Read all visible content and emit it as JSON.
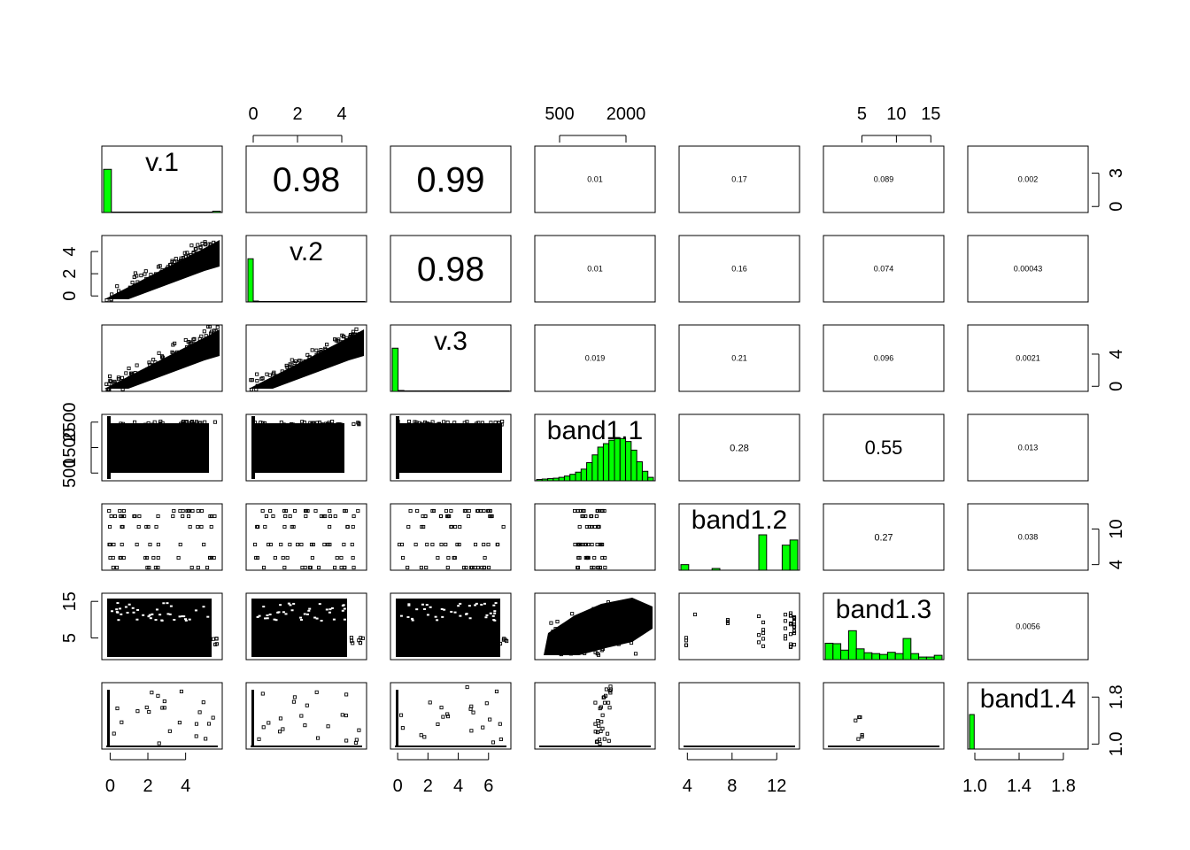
{
  "chart_data": {
    "type": "scatter-matrix",
    "variables": [
      "v.1",
      "v.2",
      "v.3",
      "band1.1",
      "band1.2",
      "band1.3",
      "band1.4"
    ],
    "axes": {
      "top": [
        {
          "col": 1,
          "ticks": [
            "0",
            "2",
            "4"
          ],
          "values": [
            0,
            2,
            4
          ],
          "range": [
            -0.2,
            5
          ]
        },
        {
          "col": 3,
          "ticks": [
            "500",
            "2000"
          ],
          "values": [
            500,
            2000
          ],
          "range": [
            0,
            2600
          ]
        },
        {
          "col": 5,
          "ticks": [
            "5",
            "10",
            "15"
          ],
          "values": [
            5,
            10,
            15
          ],
          "range": [
            -0.2,
            16.5
          ]
        }
      ],
      "bottom": [
        {
          "col": 0,
          "ticks": [
            "0",
            "2",
            "4"
          ],
          "values": [
            0,
            2,
            4
          ],
          "range": [
            -0.3,
            5.8
          ]
        },
        {
          "col": 2,
          "ticks": [
            "0",
            "2",
            "4",
            "6"
          ],
          "values": [
            0,
            2,
            4,
            6
          ],
          "range": [
            -0.3,
            7.3
          ]
        },
        {
          "col": 4,
          "ticks": [
            "4",
            "8",
            "12"
          ],
          "values": [
            4,
            8,
            12
          ],
          "range": [
            3.5,
            13.8
          ]
        },
        {
          "col": 6,
          "ticks": [
            "1.0",
            "1.4",
            "1.8"
          ],
          "values": [
            1.0,
            1.4,
            1.8
          ],
          "range": [
            0.96,
            2.0
          ]
        }
      ],
      "left": [
        {
          "row": 1,
          "ticks": [
            "0",
            "2",
            "4"
          ],
          "values": [
            0,
            2,
            4
          ],
          "range": [
            -0.3,
            5.2
          ]
        },
        {
          "row": 3,
          "ticks": [
            "500",
            "1500",
            "2500"
          ],
          "values": [
            500,
            1500,
            2500
          ],
          "range": [
            300,
            2700
          ]
        },
        {
          "row": 5,
          "ticks": [
            "5",
            "15"
          ],
          "values": [
            5,
            15
          ],
          "range": [
            -0.2,
            16.5
          ]
        }
      ],
      "right": [
        {
          "row": 0,
          "ticks": [
            "0",
            "3"
          ],
          "values": [
            0,
            3
          ],
          "range": [
            -0.3,
            5.2
          ]
        },
        {
          "row": 2,
          "ticks": [
            "0",
            "4"
          ],
          "values": [
            0,
            4
          ],
          "range": [
            -0.3,
            7.3
          ]
        },
        {
          "row": 4,
          "ticks": [
            "4",
            "10"
          ],
          "values": [
            4,
            10
          ],
          "range": [
            3.5,
            13.8
          ]
        },
        {
          "row": 6,
          "ticks": [
            "1.0",
            "1.8"
          ],
          "values": [
            1.0,
            1.8
          ],
          "range": [
            0.96,
            2.0
          ]
        }
      ]
    },
    "correlations": [
      {
        "row": 0,
        "col": 1,
        "value": "0.98"
      },
      {
        "row": 0,
        "col": 2,
        "value": "0.99"
      },
      {
        "row": 0,
        "col": 3,
        "value": "0.01"
      },
      {
        "row": 0,
        "col": 4,
        "value": "0.17"
      },
      {
        "row": 0,
        "col": 5,
        "value": "0.089"
      },
      {
        "row": 0,
        "col": 6,
        "value": "0.002"
      },
      {
        "row": 1,
        "col": 2,
        "value": "0.98"
      },
      {
        "row": 1,
        "col": 3,
        "value": "0.01"
      },
      {
        "row": 1,
        "col": 4,
        "value": "0.16"
      },
      {
        "row": 1,
        "col": 5,
        "value": "0.074"
      },
      {
        "row": 1,
        "col": 6,
        "value": "0.00043"
      },
      {
        "row": 2,
        "col": 3,
        "value": "0.019"
      },
      {
        "row": 2,
        "col": 4,
        "value": "0.21"
      },
      {
        "row": 2,
        "col": 5,
        "value": "0.096"
      },
      {
        "row": 2,
        "col": 6,
        "value": "0.0021"
      },
      {
        "row": 3,
        "col": 4,
        "value": "0.28"
      },
      {
        "row": 3,
        "col": 5,
        "value": "0.55"
      },
      {
        "row": 3,
        "col": 6,
        "value": "0.013"
      },
      {
        "row": 4,
        "col": 5,
        "value": "0.27"
      },
      {
        "row": 4,
        "col": 6,
        "value": "0.038"
      },
      {
        "row": 5,
        "col": 6,
        "value": "0.0056"
      }
    ],
    "histograms": [
      {
        "var": "v.1",
        "heights": [
          1.0,
          0.01,
          0.01,
          0.01,
          0.01,
          0.01,
          0.01,
          0.01,
          0.01,
          0.01,
          0.01,
          0.01,
          0.01,
          0.01,
          0.03
        ]
      },
      {
        "var": "v.2",
        "heights": [
          1.0,
          0.02,
          0.01,
          0.01,
          0.01,
          0.01,
          0.01,
          0.01,
          0.01,
          0.01,
          0.01,
          0.01,
          0.01,
          0.01,
          0.01,
          0.01,
          0.01,
          0.01,
          0.01,
          0.01,
          0.01,
          0.01
        ]
      },
      {
        "var": "v.3",
        "heights": [
          1.0,
          0.02,
          0.01,
          0.01,
          0.01,
          0.01,
          0.01,
          0.01,
          0.01,
          0.01,
          0.01,
          0.01,
          0.01,
          0.01,
          0.01,
          0.01,
          0.01,
          0.01,
          0.01,
          0.01
        ]
      },
      {
        "var": "band1.1",
        "heights": [
          0.03,
          0.04,
          0.05,
          0.06,
          0.08,
          0.11,
          0.15,
          0.2,
          0.27,
          0.42,
          0.6,
          0.78,
          0.86,
          0.94,
          1.0,
          0.98,
          0.91,
          0.71,
          0.44,
          0.22,
          0.08
        ]
      },
      {
        "var": "band1.2",
        "heights": [
          0.13,
          0.0,
          0.0,
          0.0,
          0.04,
          0.0,
          0.0,
          0.0,
          0.0,
          0.0,
          0.82,
          0.0,
          0.0,
          0.58,
          0.7
        ]
      },
      {
        "var": "band1.3",
        "heights": [
          0.38,
          0.37,
          0.22,
          0.67,
          0.25,
          0.16,
          0.14,
          0.12,
          0.17,
          0.14,
          0.49,
          0.14,
          0.06,
          0.06,
          0.1
        ]
      },
      {
        "var": "band1.4",
        "heights": [
          0.8,
          0.0,
          0.0,
          0.0,
          0.0,
          0.0,
          0.0,
          0.0,
          0.0,
          0.0,
          0.0,
          0.0,
          0.0,
          0.0,
          0.0,
          0.0,
          0.0,
          0.0,
          0.0,
          0.0,
          0.0,
          0.0,
          0.0,
          0.0,
          0.0
        ]
      }
    ],
    "colors": {
      "histogram_fill": "#00ff00",
      "axis": "#000000",
      "points": "#000000"
    }
  }
}
